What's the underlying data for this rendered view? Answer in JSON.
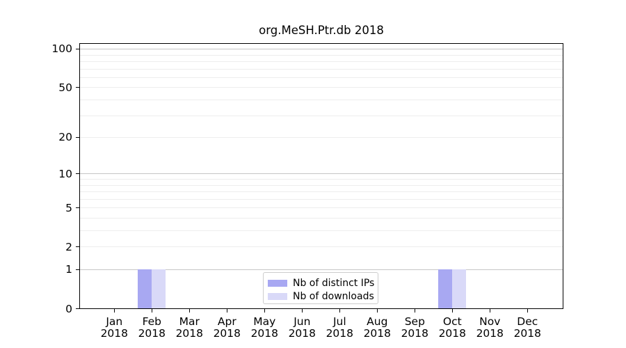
{
  "chart_data": {
    "type": "bar",
    "title": "org.MeSH.Ptr.db 2018",
    "categories": [
      "Jan 2018",
      "Feb 2018",
      "Mar 2018",
      "Apr 2018",
      "May 2018",
      "Jun 2018",
      "Jul 2018",
      "Aug 2018",
      "Sep 2018",
      "Oct 2018",
      "Nov 2018",
      "Dec 2018"
    ],
    "series": [
      {
        "name": "Nb of distinct IPs",
        "color": "#a8a8f2",
        "values": [
          0,
          1,
          0,
          0,
          0,
          0,
          0,
          0,
          0,
          1,
          0,
          0
        ]
      },
      {
        "name": "Nb of downloads",
        "color": "#d9d9f8",
        "values": [
          0,
          1,
          0,
          0,
          0,
          0,
          0,
          0,
          0,
          1,
          0,
          0
        ]
      }
    ],
    "xlabel": "",
    "ylabel": "",
    "yticks": [
      0,
      1,
      2,
      5,
      10,
      20,
      50,
      100
    ],
    "ylim": [
      0,
      111
    ],
    "yscale": "log1p",
    "grid": "both",
    "legend_position": "bottom-center"
  }
}
